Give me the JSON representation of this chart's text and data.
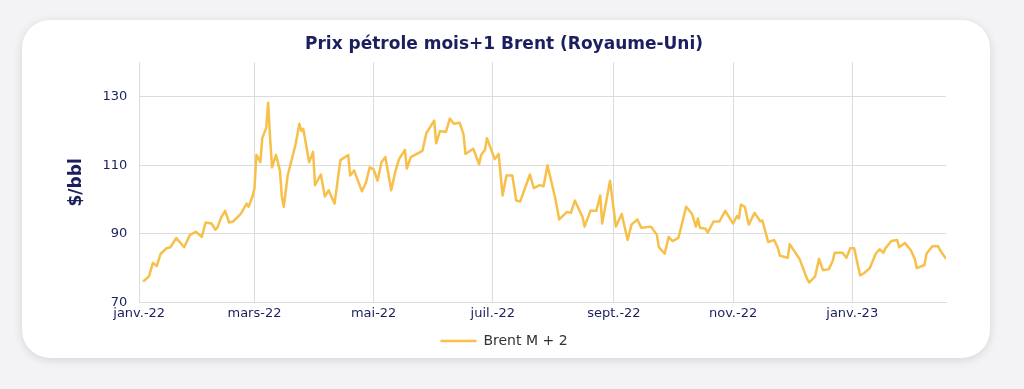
{
  "chart_data": {
    "type": "line",
    "title": "Prix pétrole mois+1 Brent (Royaume-Uni)",
    "ylabel": "$/bbl",
    "x": [
      "2022-01-03",
      "2022-01-06",
      "2022-01-08",
      "2022-01-10",
      "2022-01-12",
      "2022-01-15",
      "2022-01-17",
      "2022-01-20",
      "2022-01-24",
      "2022-01-27",
      "2022-01-30",
      "2022-02-02",
      "2022-02-04",
      "2022-02-07",
      "2022-02-09",
      "2022-02-10",
      "2022-02-12",
      "2022-02-14",
      "2022-02-16",
      "2022-02-18",
      "2022-02-22",
      "2022-02-25",
      "2022-02-26",
      "2022-02-28",
      "2022-03-01",
      "2022-03-02",
      "2022-03-04",
      "2022-03-05",
      "2022-03-07",
      "2022-03-08",
      "2022-03-09",
      "2022-03-10",
      "2022-03-12",
      "2022-03-14",
      "2022-03-15",
      "2022-03-16",
      "2022-03-18",
      "2022-03-22",
      "2022-03-24",
      "2022-03-25",
      "2022-03-26",
      "2022-03-29",
      "2022-03-31",
      "2022-04-01",
      "2022-04-04",
      "2022-04-06",
      "2022-04-08",
      "2022-04-11",
      "2022-04-14",
      "2022-04-18",
      "2022-04-19",
      "2022-04-21",
      "2022-04-25",
      "2022-04-27",
      "2022-04-29",
      "2022-05-01",
      "2022-05-03",
      "2022-05-05",
      "2022-05-07",
      "2022-05-10",
      "2022-05-12",
      "2022-05-14",
      "2022-05-17",
      "2022-05-18",
      "2022-05-20",
      "2022-05-26",
      "2022-05-28",
      "2022-06-01",
      "2022-06-02",
      "2022-06-04",
      "2022-06-07",
      "2022-06-09",
      "2022-06-11",
      "2022-06-14",
      "2022-06-16",
      "2022-06-17",
      "2022-06-21",
      "2022-06-24",
      "2022-06-25",
      "2022-06-27",
      "2022-06-28",
      "2022-07-02",
      "2022-07-04",
      "2022-07-06",
      "2022-07-08",
      "2022-07-11",
      "2022-07-13",
      "2022-07-15",
      "2022-07-20",
      "2022-07-22",
      "2022-07-25",
      "2022-07-27",
      "2022-07-29",
      "2022-08-02",
      "2022-08-04",
      "2022-08-08",
      "2022-08-10",
      "2022-08-12",
      "2022-08-16",
      "2022-08-17",
      "2022-08-20",
      "2022-08-23",
      "2022-08-25",
      "2022-08-26",
      "2022-08-30",
      "2022-09-02",
      "2022-09-05",
      "2022-09-08",
      "2022-09-10",
      "2022-09-13",
      "2022-09-15",
      "2022-09-20",
      "2022-09-23",
      "2022-09-24",
      "2022-09-27",
      "2022-09-29",
      "2022-10-01",
      "2022-10-04",
      "2022-10-08",
      "2022-10-11",
      "2022-10-13",
      "2022-10-14",
      "2022-10-15",
      "2022-10-18",
      "2022-10-19",
      "2022-10-22",
      "2022-10-25",
      "2022-10-28",
      "2022-11-01",
      "2022-11-03",
      "2022-11-04",
      "2022-11-05",
      "2022-11-07",
      "2022-11-09",
      "2022-11-12",
      "2022-11-15",
      "2022-11-16",
      "2022-11-19",
      "2022-11-22",
      "2022-11-24",
      "2022-11-25",
      "2022-11-29",
      "2022-11-30",
      "2022-12-05",
      "2022-12-09",
      "2022-12-10",
      "2022-12-13",
      "2022-12-15",
      "2022-12-17",
      "2022-12-20",
      "2022-12-22",
      "2022-12-23",
      "2022-12-27",
      "2022-12-29",
      "2022-12-31",
      "2023-01-02",
      "2023-01-05",
      "2023-01-07",
      "2023-01-10",
      "2023-01-13",
      "2023-01-15",
      "2023-01-17",
      "2023-01-18",
      "2023-01-21",
      "2023-01-24",
      "2023-01-25",
      "2023-01-28",
      "2023-01-31",
      "2023-02-02",
      "2023-02-03",
      "2023-02-07",
      "2023-02-08",
      "2023-02-11",
      "2023-02-14",
      "2023-02-15",
      "2023-02-18"
    ],
    "series": [
      {
        "name": "Brent M + 2",
        "color": "#f7c04a",
        "values": [
          76.1,
          77.6,
          81.5,
          80.6,
          84.2,
          85.8,
          86.1,
          88.8,
          86.1,
          89.7,
          90.6,
          89.1,
          93.3,
          93.0,
          91.2,
          91.8,
          94.8,
          96.7,
          93.3,
          93.6,
          95.8,
          98.8,
          97.9,
          100.9,
          103.3,
          113,
          110.9,
          117.9,
          120.9,
          128.2,
          117.9,
          109.4,
          113,
          108.5,
          100.9,
          97.9,
          107,
          116,
          122.1,
          120,
          120.6,
          110.9,
          113.9,
          104.2,
          107.3,
          100.9,
          102.7,
          98.8,
          111.5,
          113,
          107,
          108.5,
          102.4,
          104.8,
          109.4,
          108.8,
          105.5,
          110.9,
          112.4,
          102.7,
          107.9,
          111.8,
          114.5,
          109,
          112.4,
          114.2,
          119.4,
          123,
          116.4,
          120,
          119.7,
          123.6,
          122.1,
          122.4,
          119.1,
          113.3,
          114.8,
          110.3,
          113,
          114.5,
          117.9,
          111.8,
          113.3,
          101.2,
          107,
          107,
          99.7,
          99.4,
          107.3,
          103.3,
          104.2,
          103.9,
          110,
          100.3,
          94.2,
          96.4,
          96.1,
          99.7,
          94.8,
          92.1,
          96.7,
          96.7,
          101.2,
          93,
          105.5,
          92.1,
          95.8,
          88.2,
          92.7,
          94.2,
          91.8,
          92.1,
          89.7,
          86.1,
          84.2,
          89.1,
          87.9,
          88.8,
          97.9,
          95.8,
          92.1,
          94.5,
          91.8,
          91.5,
          90.3,
          93.6,
          93.6,
          96.7,
          93,
          95.2,
          94.5,
          98.5,
          97.9,
          92.7,
          96.1,
          93.6,
          93.9,
          87.6,
          88.2,
          85.8,
          83.6,
          83,
          87,
          82.7,
          76.7,
          75.8,
          77.6,
          82.7,
          79.4,
          79.7,
          82.1,
          84.5,
          84.5,
          83,
          85.8,
          85.8,
          77.9,
          78.5,
          80,
          84.2,
          85.5,
          84.5,
          85.8,
          87.9,
          88.2,
          86.1,
          87.3,
          85.2,
          82.7,
          80,
          80.9,
          84.2,
          86.4,
          86.4,
          85.2,
          82.7
        ]
      }
    ],
    "xlim": [
      "2022-01-01",
      "2023-02-18"
    ],
    "xticks": [
      {
        "value": "2022-01-01",
        "label": "janv.-22"
      },
      {
        "value": "2022-03-01",
        "label": "mars-22"
      },
      {
        "value": "2022-05-01",
        "label": "mai-22"
      },
      {
        "value": "2022-07-01",
        "label": "juil.-22"
      },
      {
        "value": "2022-09-01",
        "label": "sept.-22"
      },
      {
        "value": "2022-11-01",
        "label": "nov.-22"
      },
      {
        "value": "2023-01-01",
        "label": "janv.-23"
      }
    ],
    "ylim": [
      70,
      140
    ],
    "yticks": [
      70,
      90,
      110,
      130
    ],
    "grid": true,
    "legend": "bottom",
    "marker": "none",
    "line_style": "solid"
  }
}
